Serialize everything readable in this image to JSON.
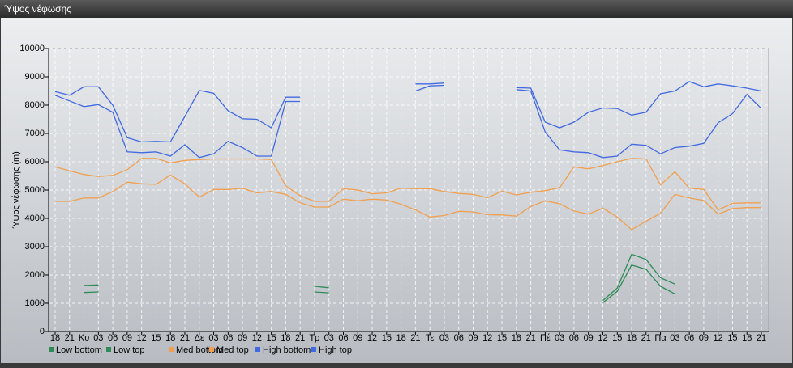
{
  "window_title": "Ύψος νέφωσης",
  "chart_data": {
    "type": "line",
    "ylabel": "Ύψος νέφωσης (m)",
    "categories": [
      "18",
      "21",
      "Κυ",
      "03",
      "06",
      "09",
      "12",
      "15",
      "18",
      "21",
      "Δε",
      "03",
      "06",
      "09",
      "12",
      "15",
      "18",
      "21",
      "Τρ",
      "03",
      "06",
      "09",
      "12",
      "15",
      "18",
      "21",
      "Τε",
      "03",
      "06",
      "09",
      "12",
      "15",
      "18",
      "21",
      "Πέ",
      "03",
      "06",
      "09",
      "12",
      "15",
      "18",
      "21",
      "Πα",
      "03",
      "06",
      "09",
      "12",
      "15",
      "18",
      "21"
    ],
    "ylim": [
      0,
      10000
    ],
    "yticks": [
      0,
      1000,
      2000,
      3000,
      4000,
      5000,
      6000,
      7000,
      8000,
      9000,
      10000
    ],
    "grid": true,
    "series": [
      {
        "name": "Low bottom",
        "color": "#2e8b57",
        "values": [
          null,
          null,
          1380,
          1400,
          null,
          null,
          null,
          null,
          null,
          null,
          null,
          null,
          null,
          null,
          null,
          null,
          null,
          null,
          1400,
          1370,
          null,
          null,
          null,
          null,
          null,
          null,
          null,
          null,
          null,
          null,
          null,
          null,
          null,
          null,
          null,
          null,
          null,
          null,
          1020,
          1420,
          2350,
          2200,
          1600,
          1330,
          null,
          null,
          null,
          null,
          null,
          null
        ]
      },
      {
        "name": "Low top",
        "color": "#2e8b57",
        "values": [
          null,
          null,
          1630,
          1650,
          null,
          null,
          null,
          null,
          null,
          null,
          null,
          null,
          null,
          null,
          null,
          null,
          null,
          null,
          1600,
          1550,
          null,
          null,
          null,
          null,
          null,
          null,
          null,
          null,
          null,
          null,
          null,
          null,
          null,
          null,
          null,
          null,
          null,
          null,
          1100,
          1530,
          2730,
          2550,
          1900,
          1680,
          null,
          null,
          null,
          null,
          null,
          null
        ]
      },
      {
        "name": "Med bottom",
        "color": "#f0a050",
        "values": [
          4600,
          4600,
          4720,
          4720,
          4950,
          5280,
          5220,
          5200,
          5530,
          5220,
          4750,
          5020,
          5020,
          5060,
          4900,
          4950,
          4850,
          4550,
          4400,
          4400,
          4680,
          4620,
          4680,
          4650,
          4500,
          4300,
          4050,
          4100,
          4250,
          4230,
          4130,
          4120,
          4080,
          4420,
          4620,
          4520,
          4260,
          4150,
          4360,
          4050,
          3600,
          3900,
          4180,
          4850,
          4720,
          4630,
          4150,
          4350,
          4380,
          4380
        ]
      },
      {
        "name": "Med top",
        "color": "#f0a050",
        "values": [
          5820,
          5680,
          5550,
          5480,
          5520,
          5720,
          6120,
          6120,
          5960,
          6050,
          6080,
          6100,
          6100,
          6100,
          6100,
          6080,
          5150,
          4800,
          4600,
          4600,
          5050,
          5000,
          4870,
          4900,
          5070,
          5050,
          5050,
          4950,
          4880,
          4850,
          4730,
          4960,
          4830,
          4920,
          4980,
          5080,
          5820,
          5750,
          5870,
          6000,
          6120,
          6100,
          5180,
          5650,
          5070,
          5020,
          4300,
          4530,
          4550,
          4550
        ]
      },
      {
        "name": "High bottom",
        "color": "#4169e1",
        "values": [
          8350,
          8150,
          7950,
          8020,
          7750,
          6350,
          6320,
          6350,
          6200,
          6600,
          6150,
          6280,
          6720,
          6500,
          6200,
          6200,
          8130,
          8130,
          null,
          null,
          null,
          null,
          null,
          null,
          null,
          8500,
          8680,
          8700,
          null,
          null,
          null,
          null,
          8550,
          8500,
          7050,
          6420,
          6350,
          6320,
          6150,
          6200,
          6620,
          6580,
          6280,
          6500,
          6550,
          6650,
          7380,
          7700,
          8380,
          7880
        ]
      },
      {
        "name": "High top",
        "color": "#4169e1",
        "values": [
          8480,
          8350,
          8650,
          8650,
          8000,
          6850,
          6700,
          6720,
          6700,
          7600,
          8520,
          8420,
          7800,
          7520,
          7500,
          7200,
          8280,
          8280,
          null,
          null,
          null,
          null,
          null,
          null,
          null,
          8750,
          8750,
          8780,
          null,
          null,
          null,
          null,
          8620,
          8600,
          7400,
          7200,
          7400,
          7750,
          7900,
          7880,
          7650,
          7750,
          8400,
          8500,
          8830,
          8650,
          8750,
          8680,
          8600,
          8500
        ]
      }
    ]
  }
}
